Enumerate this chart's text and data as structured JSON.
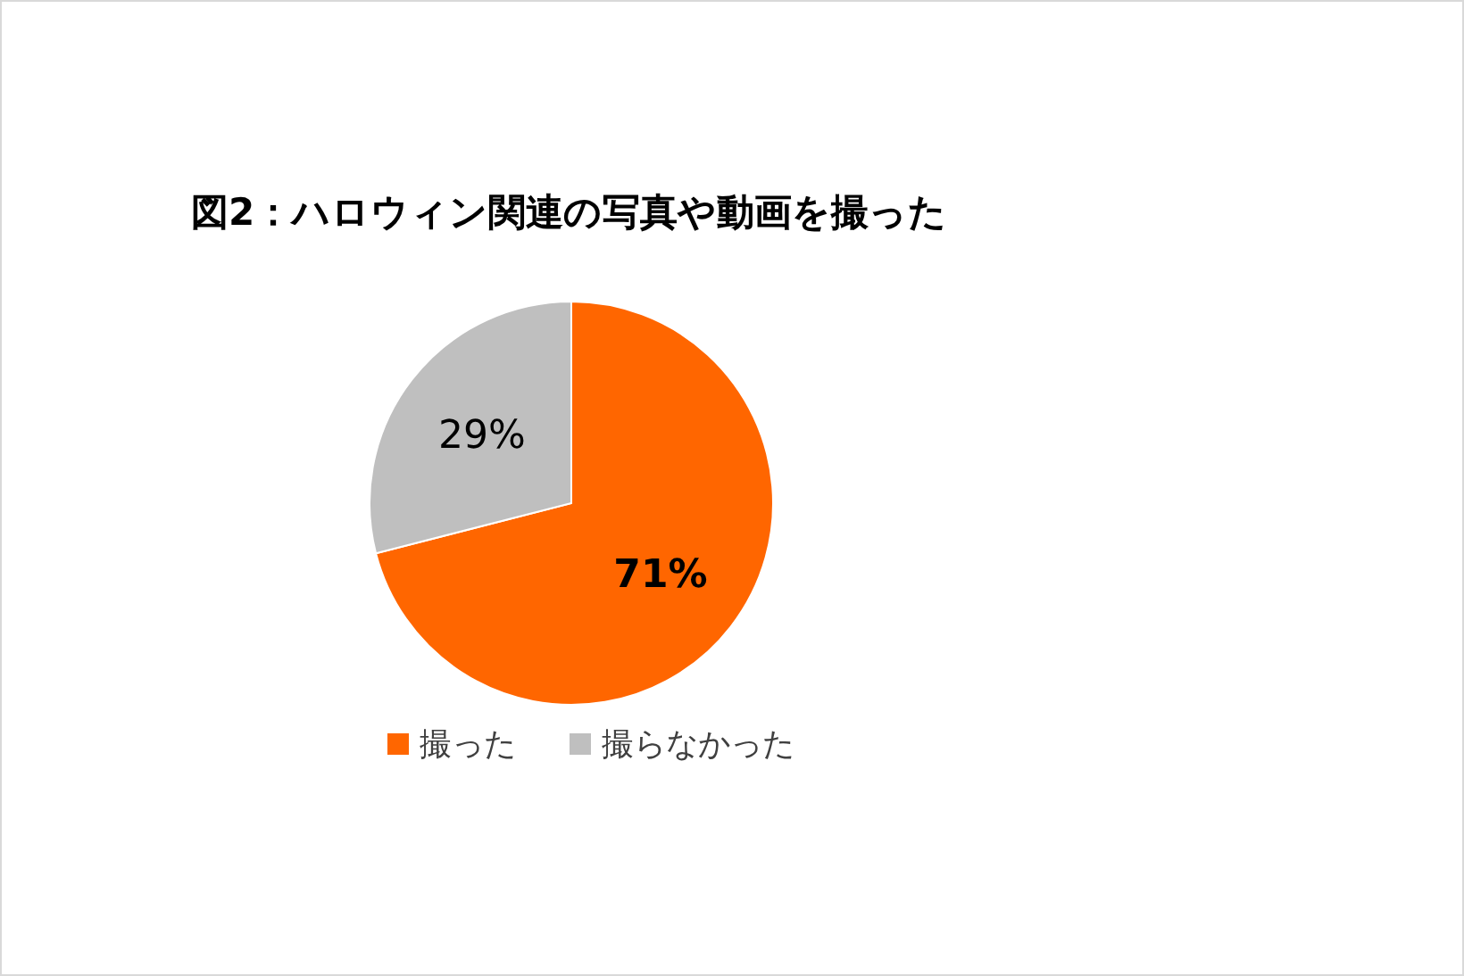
{
  "chart_data": {
    "type": "pie",
    "title": "図2：ハロウィン関連の写真や動画を撮った",
    "categories": [
      "撮った",
      "撮らなかった"
    ],
    "values": [
      71,
      29
    ],
    "colors": [
      "#ff6600",
      "#bfbfbf"
    ],
    "value_labels": [
      "71%",
      "29%"
    ],
    "legend": "bottom"
  }
}
